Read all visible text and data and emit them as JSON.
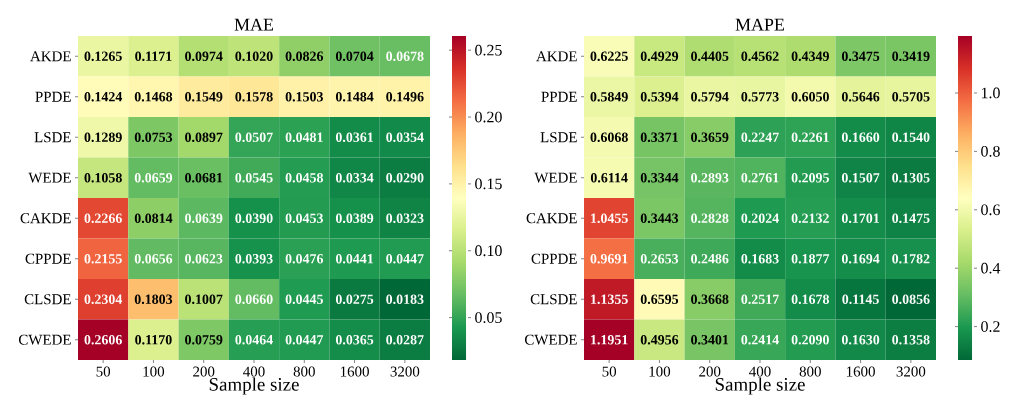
{
  "chart_data": [
    {
      "type": "heatmap",
      "title": "MAE",
      "xlabel": "Sample size",
      "categories": [
        "50",
        "100",
        "200",
        "400",
        "800",
        "1600",
        "3200"
      ],
      "y_categories": [
        "AKDE",
        "PPDE",
        "LSDE",
        "WEDE",
        "CAKDE",
        "CPPDE",
        "CLSDE",
        "CWEDE"
      ],
      "cells": [
        [
          0.1265,
          0.1171,
          0.0974,
          0.102,
          0.0826,
          0.0704,
          0.0678
        ],
        [
          0.1424,
          0.1468,
          0.1549,
          0.1578,
          0.1503,
          0.1484,
          0.1496
        ],
        [
          0.1289,
          0.0753,
          0.0897,
          0.0507,
          0.0481,
          0.0361,
          0.0354
        ],
        [
          0.1058,
          0.0659,
          0.0681,
          0.0545,
          0.0458,
          0.0334,
          0.029
        ],
        [
          0.2266,
          0.0814,
          0.0639,
          0.039,
          0.0453,
          0.0389,
          0.0323
        ],
        [
          0.2155,
          0.0656,
          0.0623,
          0.0393,
          0.0476,
          0.0441,
          0.0447
        ],
        [
          0.2304,
          0.1803,
          0.1007,
          0.066,
          0.0445,
          0.0275,
          0.0183
        ],
        [
          0.2606,
          0.117,
          0.0759,
          0.0464,
          0.0447,
          0.0365,
          0.0287
        ]
      ],
      "cell_labels": [
        [
          "0.1265",
          "0.1171",
          "0.0974",
          "0.1020",
          "0.0826",
          "0.0704",
          "0.0678"
        ],
        [
          "0.1424",
          "0.1468",
          "0.1549",
          "0.1578",
          "0.1503",
          "0.1484",
          "0.1496"
        ],
        [
          "0.1289",
          "0.0753",
          "0.0897",
          "0.0507",
          "0.0481",
          "0.0361",
          "0.0354"
        ],
        [
          "0.1058",
          "0.0659",
          "0.0681",
          "0.0545",
          "0.0458",
          "0.0334",
          "0.0290"
        ],
        [
          "0.2266",
          "0.0814",
          "0.0639",
          "0.0390",
          "0.0453",
          "0.0389",
          "0.0323"
        ],
        [
          "0.2155",
          "0.0656",
          "0.0623",
          "0.0393",
          "0.0476",
          "0.0441",
          "0.0447"
        ],
        [
          "0.2304",
          "0.1803",
          "0.1007",
          "0.0660",
          "0.0445",
          "0.0275",
          "0.0183"
        ],
        [
          "0.2606",
          "0.1170",
          "0.0759",
          "0.0464",
          "0.0447",
          "0.0365",
          "0.0287"
        ]
      ],
      "clim": [
        0.0183,
        0.2606
      ],
      "cticks": [
        {
          "value": 0.05,
          "label": "0.05"
        },
        {
          "value": 0.1,
          "label": "0.10"
        },
        {
          "value": 0.15,
          "label": "0.15"
        },
        {
          "value": 0.2,
          "label": "0.20"
        },
        {
          "value": 0.25,
          "label": "0.25"
        }
      ]
    },
    {
      "type": "heatmap",
      "title": "MAPE",
      "xlabel": "Sample size",
      "categories": [
        "50",
        "100",
        "200",
        "400",
        "800",
        "1600",
        "3200"
      ],
      "y_categories": [
        "AKDE",
        "PPDE",
        "LSDE",
        "WEDE",
        "CAKDE",
        "CPPDE",
        "CLSDE",
        "CWEDE"
      ],
      "cells": [
        [
          0.6225,
          0.4929,
          0.4405,
          0.4562,
          0.4349,
          0.3475,
          0.3419
        ],
        [
          0.5849,
          0.5394,
          0.5794,
          0.5773,
          0.605,
          0.5646,
          0.5705
        ],
        [
          0.6068,
          0.3371,
          0.3659,
          0.2247,
          0.2261,
          0.166,
          0.154
        ],
        [
          0.6114,
          0.3344,
          0.2893,
          0.2761,
          0.2095,
          0.1507,
          0.1305
        ],
        [
          1.0455,
          0.3443,
          0.2828,
          0.2024,
          0.2132,
          0.1701,
          0.1475
        ],
        [
          0.9691,
          0.2653,
          0.2486,
          0.1683,
          0.1877,
          0.1694,
          0.1782
        ],
        [
          1.1355,
          0.6595,
          0.3668,
          0.2517,
          0.1678,
          0.1145,
          0.0856
        ],
        [
          1.1951,
          0.4956,
          0.3401,
          0.2414,
          0.209,
          0.163,
          0.1358
        ]
      ],
      "cell_labels": [
        [
          "0.6225",
          "0.4929",
          "0.4405",
          "0.4562",
          "0.4349",
          "0.3475",
          "0.3419"
        ],
        [
          "0.5849",
          "0.5394",
          "0.5794",
          "0.5773",
          "0.6050",
          "0.5646",
          "0.5705"
        ],
        [
          "0.6068",
          "0.3371",
          "0.3659",
          "0.2247",
          "0.2261",
          "0.1660",
          "0.1540"
        ],
        [
          "0.6114",
          "0.3344",
          "0.2893",
          "0.2761",
          "0.2095",
          "0.1507",
          "0.1305"
        ],
        [
          "1.0455",
          "0.3443",
          "0.2828",
          "0.2024",
          "0.2132",
          "0.1701",
          "0.1475"
        ],
        [
          "0.9691",
          "0.2653",
          "0.2486",
          "0.1683",
          "0.1877",
          "0.1694",
          "0.1782"
        ],
        [
          "1.1355",
          "0.6595",
          "0.3668",
          "0.2517",
          "0.1678",
          "0.1145",
          "0.0856"
        ],
        [
          "1.1951",
          "0.4956",
          "0.3401",
          "0.2414",
          "0.2090",
          "0.1630",
          "0.1358"
        ]
      ],
      "clim": [
        0.0856,
        1.1951
      ],
      "cticks": [
        {
          "value": 0.2,
          "label": "0.2"
        },
        {
          "value": 0.4,
          "label": "0.4"
        },
        {
          "value": 0.6,
          "label": "0.6"
        },
        {
          "value": 0.8,
          "label": "0.8"
        },
        {
          "value": 1.0,
          "label": "1.0"
        }
      ]
    }
  ]
}
